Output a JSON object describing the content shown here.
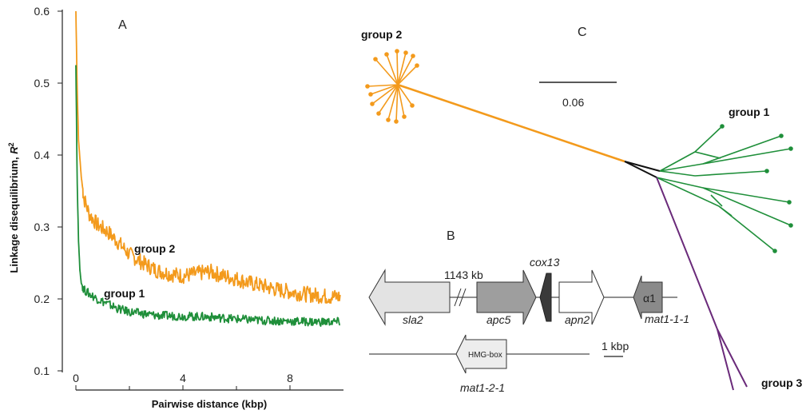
{
  "panels": {
    "a": "A",
    "b": "B",
    "c": "C"
  },
  "colors": {
    "group1": "#1f8f3a",
    "group2": "#f39a1c",
    "group3": "#6a2a7a",
    "axis": "#222222"
  },
  "chart_data": {
    "type": "line",
    "title": "",
    "xlabel": "Pairwise distance (kbp)",
    "ylabel": "Linkage disequilibrium, ",
    "ylabel_symbol": "R",
    "ylabel_superscript": "2",
    "xlim": [
      -0.3,
      10
    ],
    "ylim": [
      0.1,
      0.6
    ],
    "xticks": [
      "0",
      "4",
      "8"
    ],
    "xtick_values": [
      0,
      4,
      8
    ],
    "yticks": [
      "0.1",
      "0.2",
      "0.3",
      "0.4",
      "0.5",
      "0.6"
    ],
    "ytick_values": [
      0.1,
      0.2,
      0.3,
      0.4,
      0.5,
      0.6
    ],
    "series": [
      {
        "name": "group 2",
        "color": "#f39a1c",
        "x": [
          0,
          0.05,
          0.1,
          0.2,
          0.3,
          0.5,
          0.8,
          1.2,
          1.6,
          2.0,
          2.5,
          3.0,
          3.5,
          4.0,
          4.5,
          5.0,
          5.5,
          6.0,
          6.5,
          7.0,
          7.5,
          8.0,
          8.5,
          9.0,
          9.5,
          9.9
        ],
        "y": [
          0.6,
          0.49,
          0.42,
          0.37,
          0.34,
          0.318,
          0.303,
          0.293,
          0.278,
          0.262,
          0.25,
          0.24,
          0.235,
          0.232,
          0.235,
          0.238,
          0.232,
          0.228,
          0.222,
          0.218,
          0.213,
          0.21,
          0.207,
          0.205,
          0.203,
          0.203
        ]
      },
      {
        "name": "group 1",
        "color": "#1f8f3a",
        "x": [
          0,
          0.05,
          0.1,
          0.15,
          0.2,
          0.3,
          0.5,
          0.8,
          1.2,
          1.6,
          2.0,
          3.0,
          4.0,
          5.0,
          6.0,
          7.0,
          8.0,
          9.0,
          9.9
        ],
        "y": [
          0.525,
          0.36,
          0.28,
          0.24,
          0.222,
          0.213,
          0.207,
          0.2,
          0.193,
          0.186,
          0.182,
          0.177,
          0.176,
          0.175,
          0.172,
          0.17,
          0.169,
          0.168,
          0.168
        ]
      }
    ],
    "annotations": [
      "group 2",
      "group 1"
    ]
  },
  "gene_map": {
    "label_1143": "1143 kb",
    "genes_top": [
      "sla2",
      "apc5",
      "cox13",
      "apn2",
      "mat1-1-1"
    ],
    "alpha_box": "α1",
    "hmg_box": "HMG-box",
    "gene_bottom": "mat1-2-1",
    "scale": "1 kbp"
  },
  "tree": {
    "scale": "0.06",
    "group_labels": [
      "group 2",
      "group 1",
      "group 3"
    ]
  }
}
